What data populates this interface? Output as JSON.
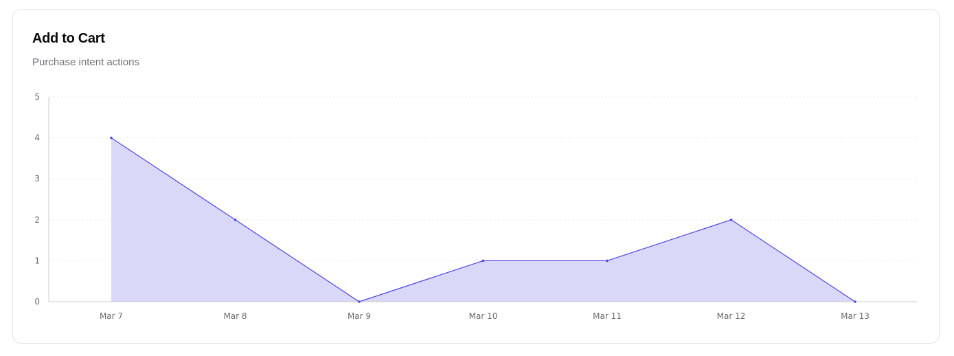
{
  "card": {
    "title": "Add to Cart",
    "subtitle": "Purchase intent actions"
  },
  "colors": {
    "line": "#4f46e5",
    "fill": "#dad8f8",
    "grid": "#ececec",
    "axis": "#cccccc"
  },
  "chart_data": {
    "type": "area",
    "title": "Add to Cart",
    "subtitle": "Purchase intent actions",
    "categories": [
      "Mar 7",
      "Mar 8",
      "Mar 9",
      "Mar 10",
      "Mar 11",
      "Mar 12",
      "Mar 13"
    ],
    "values": [
      4,
      2,
      0,
      1,
      1,
      2,
      0
    ],
    "ylim": [
      0,
      5
    ],
    "yticks": [
      0,
      1,
      2,
      3,
      4,
      5
    ],
    "grid": true,
    "xlabel": "",
    "ylabel": ""
  }
}
